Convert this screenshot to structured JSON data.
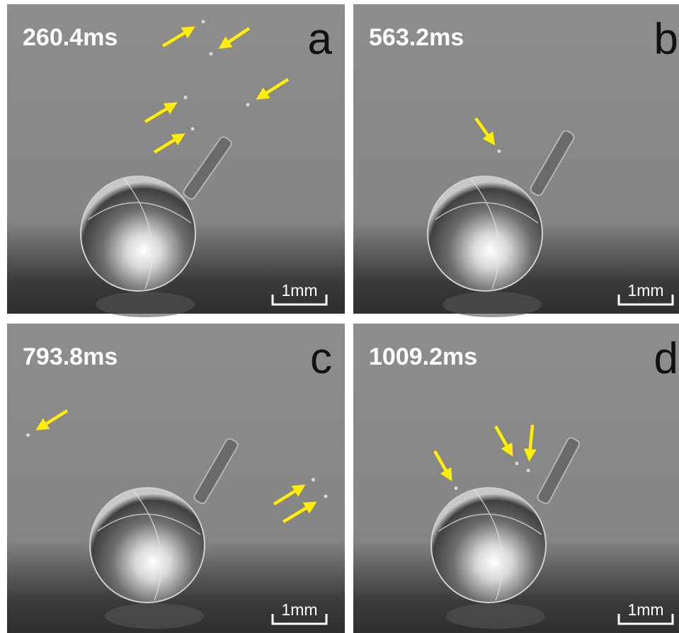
{
  "panels": [
    {
      "time": "260.4ms",
      "letter": "a",
      "scale": "1mm"
    },
    {
      "time": "563.2ms",
      "letter": "b",
      "scale": "1mm"
    },
    {
      "time": "793.8ms",
      "letter": "c",
      "scale": "1mm"
    },
    {
      "time": "1009.2ms",
      "letter": "d",
      "scale": "1mm"
    }
  ]
}
